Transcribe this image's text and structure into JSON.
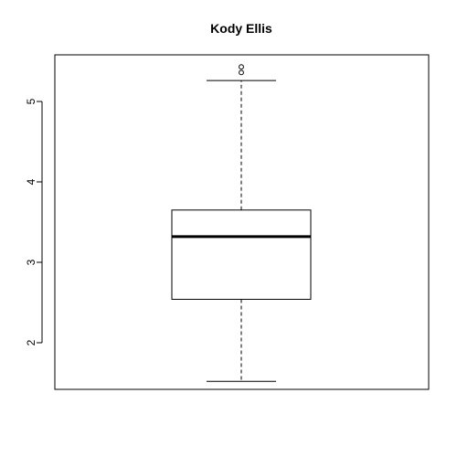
{
  "chart_data": {
    "type": "boxplot",
    "title": "Kody Ellis",
    "xlabel": "",
    "ylabel": "",
    "ylim": [
      1.42,
      5.58
    ],
    "yticks": [
      2,
      3,
      4,
      5
    ],
    "grid": false,
    "legend": "none",
    "box": {
      "whisker_low": 1.52,
      "q1": 2.54,
      "median": 3.32,
      "q3": 3.65,
      "whisker_high": 5.26,
      "outliers": [
        5.36,
        5.43
      ]
    }
  }
}
